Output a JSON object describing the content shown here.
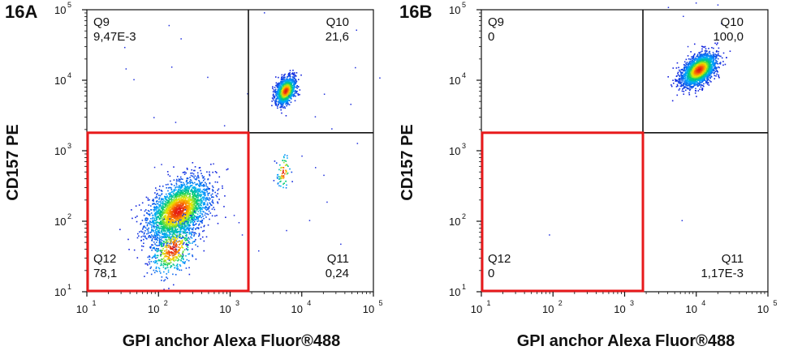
{
  "chart_data": [
    {
      "type": "scatter",
      "panel_label": "16A",
      "xlabel": "GPI anchor Alexa Fluor®488",
      "ylabel": "CD157 PE",
      "x_scale": "log",
      "y_scale": "log",
      "xlim": [
        10,
        100000
      ],
      "ylim": [
        10,
        100000
      ],
      "x_gate": 1800,
      "y_gate": 1800,
      "x_ticks": [
        {
          "base": "10",
          "exp": "1",
          "value": 10
        },
        {
          "base": "10",
          "exp": "2",
          "value": 100
        },
        {
          "base": "10",
          "exp": "3",
          "value": 1000
        },
        {
          "base": "10",
          "exp": "4",
          "value": 10000
        },
        {
          "base": "10",
          "exp": "5",
          "value": 100000
        }
      ],
      "y_ticks": [
        {
          "base": "10",
          "exp": "1",
          "value": 10
        },
        {
          "base": "10",
          "exp": "2",
          "value": 100
        },
        {
          "base": "10",
          "exp": "3",
          "value": 1000
        },
        {
          "base": "10",
          "exp": "4",
          "value": 10000
        },
        {
          "base": "10",
          "exp": "5",
          "value": 100000
        }
      ],
      "quadrants": [
        {
          "name": "Q9",
          "value": "9,47E-3",
          "position": "top-left"
        },
        {
          "name": "Q10",
          "value": "21,6",
          "position": "top-right"
        },
        {
          "name": "Q11",
          "value": "0,24",
          "position": "bottom-right"
        },
        {
          "name": "Q12",
          "value": "78,1",
          "position": "bottom-left"
        }
      ],
      "highlight_gate": "Q12",
      "highlight_color": "#e8191b",
      "populations": [
        {
          "center": [
            190,
            140
          ],
          "spread": [
            0.22,
            0.2
          ],
          "count": 2600,
          "label": "main"
        },
        {
          "center": [
            160,
            40
          ],
          "spread": [
            0.16,
            0.18
          ],
          "count": 500,
          "label": "tail"
        },
        {
          "center": [
            6000,
            7000
          ],
          "spread": [
            0.07,
            0.09
          ],
          "count": 1100,
          "label": "Q10"
        },
        {
          "center": [
            5600,
            500
          ],
          "spread": [
            0.05,
            0.14
          ],
          "count": 70,
          "label": "Q11 streak"
        }
      ]
    },
    {
      "type": "scatter",
      "panel_label": "16B",
      "xlabel": "GPI anchor Alexa Fluor®488",
      "ylabel": "CD157 PE",
      "x_scale": "log",
      "y_scale": "log",
      "xlim": [
        10,
        100000
      ],
      "ylim": [
        10,
        100000
      ],
      "x_gate": 1800,
      "y_gate": 1800,
      "x_ticks": [
        {
          "base": "10",
          "exp": "1",
          "value": 10
        },
        {
          "base": "10",
          "exp": "2",
          "value": 100
        },
        {
          "base": "10",
          "exp": "3",
          "value": 1000
        },
        {
          "base": "10",
          "exp": "4",
          "value": 10000
        },
        {
          "base": "10",
          "exp": "5",
          "value": 100000
        }
      ],
      "y_ticks": [
        {
          "base": "10",
          "exp": "1",
          "value": 10
        },
        {
          "base": "10",
          "exp": "2",
          "value": 100
        },
        {
          "base": "10",
          "exp": "3",
          "value": 1000
        },
        {
          "base": "10",
          "exp": "4",
          "value": 10000
        },
        {
          "base": "10",
          "exp": "5",
          "value": 100000
        }
      ],
      "quadrants": [
        {
          "name": "Q9",
          "value": "0",
          "position": "top-left"
        },
        {
          "name": "Q10",
          "value": "100,0",
          "position": "top-right"
        },
        {
          "name": "Q11",
          "value": "1,17E-3",
          "position": "bottom-right"
        },
        {
          "name": "Q12",
          "value": "0",
          "position": "bottom-left"
        }
      ],
      "highlight_gate": "Q12",
      "highlight_color": "#e8191b",
      "populations": [
        {
          "center": [
            11000,
            14000
          ],
          "spread": [
            0.12,
            0.1
          ],
          "count": 2200,
          "label": "Q10"
        }
      ]
    }
  ]
}
